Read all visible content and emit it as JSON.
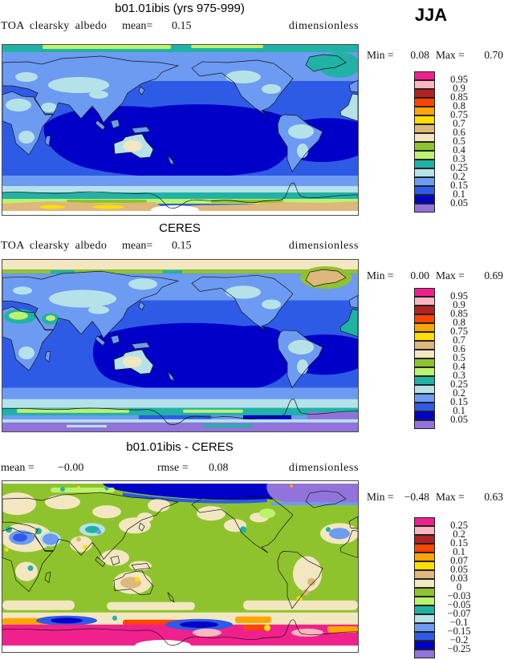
{
  "header": {
    "season_label": "JJA"
  },
  "panels": [
    {
      "title": "b01.01ibis (yrs 975-999)",
      "var_label": "TOA clearsky albedo",
      "mean_label": "mean=",
      "mean_value": "0.15",
      "units": "dimensionless",
      "min_label": "Min =",
      "min_value": "0.08",
      "max_label": "Max =",
      "max_value": "0.70",
      "legend_labels": [
        "0.95",
        "0.9",
        "0.85",
        "0.8",
        "0.75",
        "0.7",
        "0.6",
        "0.5",
        "0.4",
        "0.3",
        "0.25",
        "0.2",
        "0.15",
        "0.1",
        "0.05"
      ]
    },
    {
      "title": "CERES",
      "var_label": "TOA clearsky albedo",
      "mean_label": "mean=",
      "mean_value": "0.15",
      "units": "dimensionless",
      "min_label": "Min =",
      "min_value": "0.00",
      "max_label": "Max =",
      "max_value": "0.69",
      "legend_labels": [
        "0.95",
        "0.9",
        "0.85",
        "0.8",
        "0.75",
        "0.7",
        "0.6",
        "0.5",
        "0.4",
        "0.3",
        "0.25",
        "0.2",
        "0.15",
        "0.1",
        "0.05"
      ]
    },
    {
      "title": "b01.01ibis - CERES",
      "mean_label": "mean =",
      "mean_value": "−0.00",
      "rmse_label": "rmse =",
      "rmse_value": "0.08",
      "units": "dimensionless",
      "min_label": "Min =",
      "min_value": "−0.48",
      "max_label": "Max =",
      "max_value": "0.63",
      "legend_labels": [
        "0.25",
        "0.2",
        "0.15",
        "0.1",
        "0.07",
        "0.05",
        "0.03",
        "0",
        "−0.03",
        "−0.05",
        "−0.07",
        "−0.1",
        "−0.15",
        "−0.2",
        "−0.25"
      ]
    }
  ],
  "chart_data": {
    "type": "heatmap",
    "subtype": "filled-contour-world-maps",
    "season": "JJA",
    "variable": "TOA clearsky albedo",
    "units": "dimensionless",
    "projection": "global cylindrical equidistant, Pacific-centered",
    "palette_top_to_bottom": [
      "#F0218C",
      "#FFB6C1",
      "#B22222",
      "#FF4500",
      "#FFA500",
      "#FFDE00",
      "#DDB77C",
      "#F3E7C1",
      "#8FC32E",
      "#BCF26D",
      "#20B2A5",
      "#B5E2E8",
      "#6D9BF2",
      "#2E5BE6",
      "#0000C8",
      "#9173DB"
    ],
    "panels": [
      {
        "title": "b01.01ibis (yrs 975-999)",
        "mean": 0.15,
        "min": 0.08,
        "max": 0.7,
        "contour_levels": [
          0.05,
          0.1,
          0.15,
          0.2,
          0.25,
          0.3,
          0.4,
          0.5,
          0.6,
          0.7,
          0.75,
          0.8,
          0.85,
          0.9,
          0.95
        ],
        "pattern_summary": "Tropical oceans 0.05-0.1, midlatitude oceans 0.1-0.2, polar bands 0.2-0.3, Southern Ocean fringe 0.3-0.5, Antarctica 0.6-0.75"
      },
      {
        "title": "CERES",
        "mean": 0.15,
        "min": 0.0,
        "max": 0.69,
        "contour_levels": [
          0.05,
          0.1,
          0.15,
          0.2,
          0.25,
          0.3,
          0.4,
          0.5,
          0.6,
          0.7,
          0.75,
          0.8,
          0.85,
          0.9,
          0.95
        ],
        "pattern_summary": "Similar blue ocean pattern; Arctic cap 0.5-0.6, Greenland 0.6-0.7, Sahara/Arabia 0.25-0.4, high-latitude Southern Ocean below 0.05 (purple)"
      },
      {
        "title": "b01.01ibis - CERES",
        "mean": -0.0,
        "rmse": 0.08,
        "min": -0.48,
        "max": 0.63,
        "contour_levels": [
          -0.25,
          -0.2,
          -0.15,
          -0.1,
          -0.07,
          -0.05,
          -0.03,
          0,
          0.03,
          0.05,
          0.07,
          0.1,
          0.15,
          0.2,
          0.25
        ],
        "pattern_summary": "Mostly -0.03 to 0 (green) with 0.03-0.05 (cream) over land; Arctic ocean -0.25 to -0.2; Greenland sector below -0.25; Antarctic band above 0.25 (magenta) with local -0.2 and +0.1 to +0.2 patches"
      }
    ]
  }
}
